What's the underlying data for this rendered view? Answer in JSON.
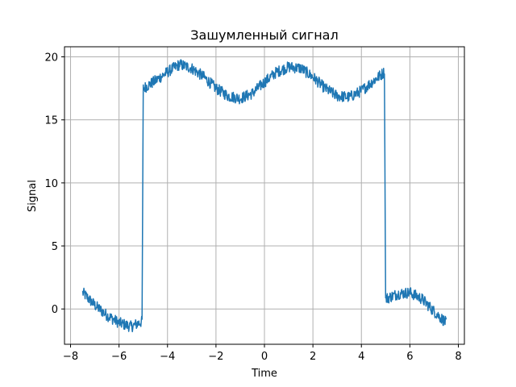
{
  "chart_data": {
    "type": "line",
    "title": "Зашумленный сигнал",
    "xlabel": "Time",
    "ylabel": "Signal",
    "xlim": [
      -8.25,
      8.25
    ],
    "ylim": [
      -2.8,
      20.8
    ],
    "xticks": [
      -8,
      -6,
      -4,
      -2,
      0,
      2,
      4,
      6,
      8
    ],
    "xtick_labels": [
      "−8",
      "−6",
      "−4",
      "−2",
      "0",
      "2",
      "4",
      "6",
      "8"
    ],
    "yticks": [
      0,
      5,
      10,
      15,
      20
    ],
    "ytick_labels": [
      "0",
      "5",
      "10",
      "15",
      "20"
    ],
    "grid": true,
    "series": [
      {
        "color": "#1f77b4",
        "x": [
          -7.5,
          -7.0,
          -6.5,
          -6.0,
          -5.5,
          -5.05,
          -5.0,
          -4.5,
          -4.0,
          -3.5,
          -3.0,
          -2.5,
          -2.0,
          -1.5,
          -1.0,
          -0.5,
          0.0,
          0.5,
          1.0,
          1.5,
          2.0,
          2.5,
          3.0,
          3.5,
          4.0,
          4.5,
          4.95,
          5.0,
          5.5,
          6.0,
          6.5,
          7.0,
          7.5
        ],
        "y": [
          1.3,
          0.3,
          -0.5,
          -1.1,
          -1.4,
          -1.0,
          17.5,
          18.1,
          18.8,
          19.4,
          19.1,
          18.4,
          17.5,
          16.9,
          16.7,
          17.1,
          18.0,
          18.8,
          19.2,
          19.1,
          18.4,
          17.5,
          16.9,
          16.8,
          17.3,
          18.1,
          18.8,
          0.8,
          1.2,
          1.3,
          0.8,
          -0.2,
          -1.1
        ]
      }
    ]
  }
}
